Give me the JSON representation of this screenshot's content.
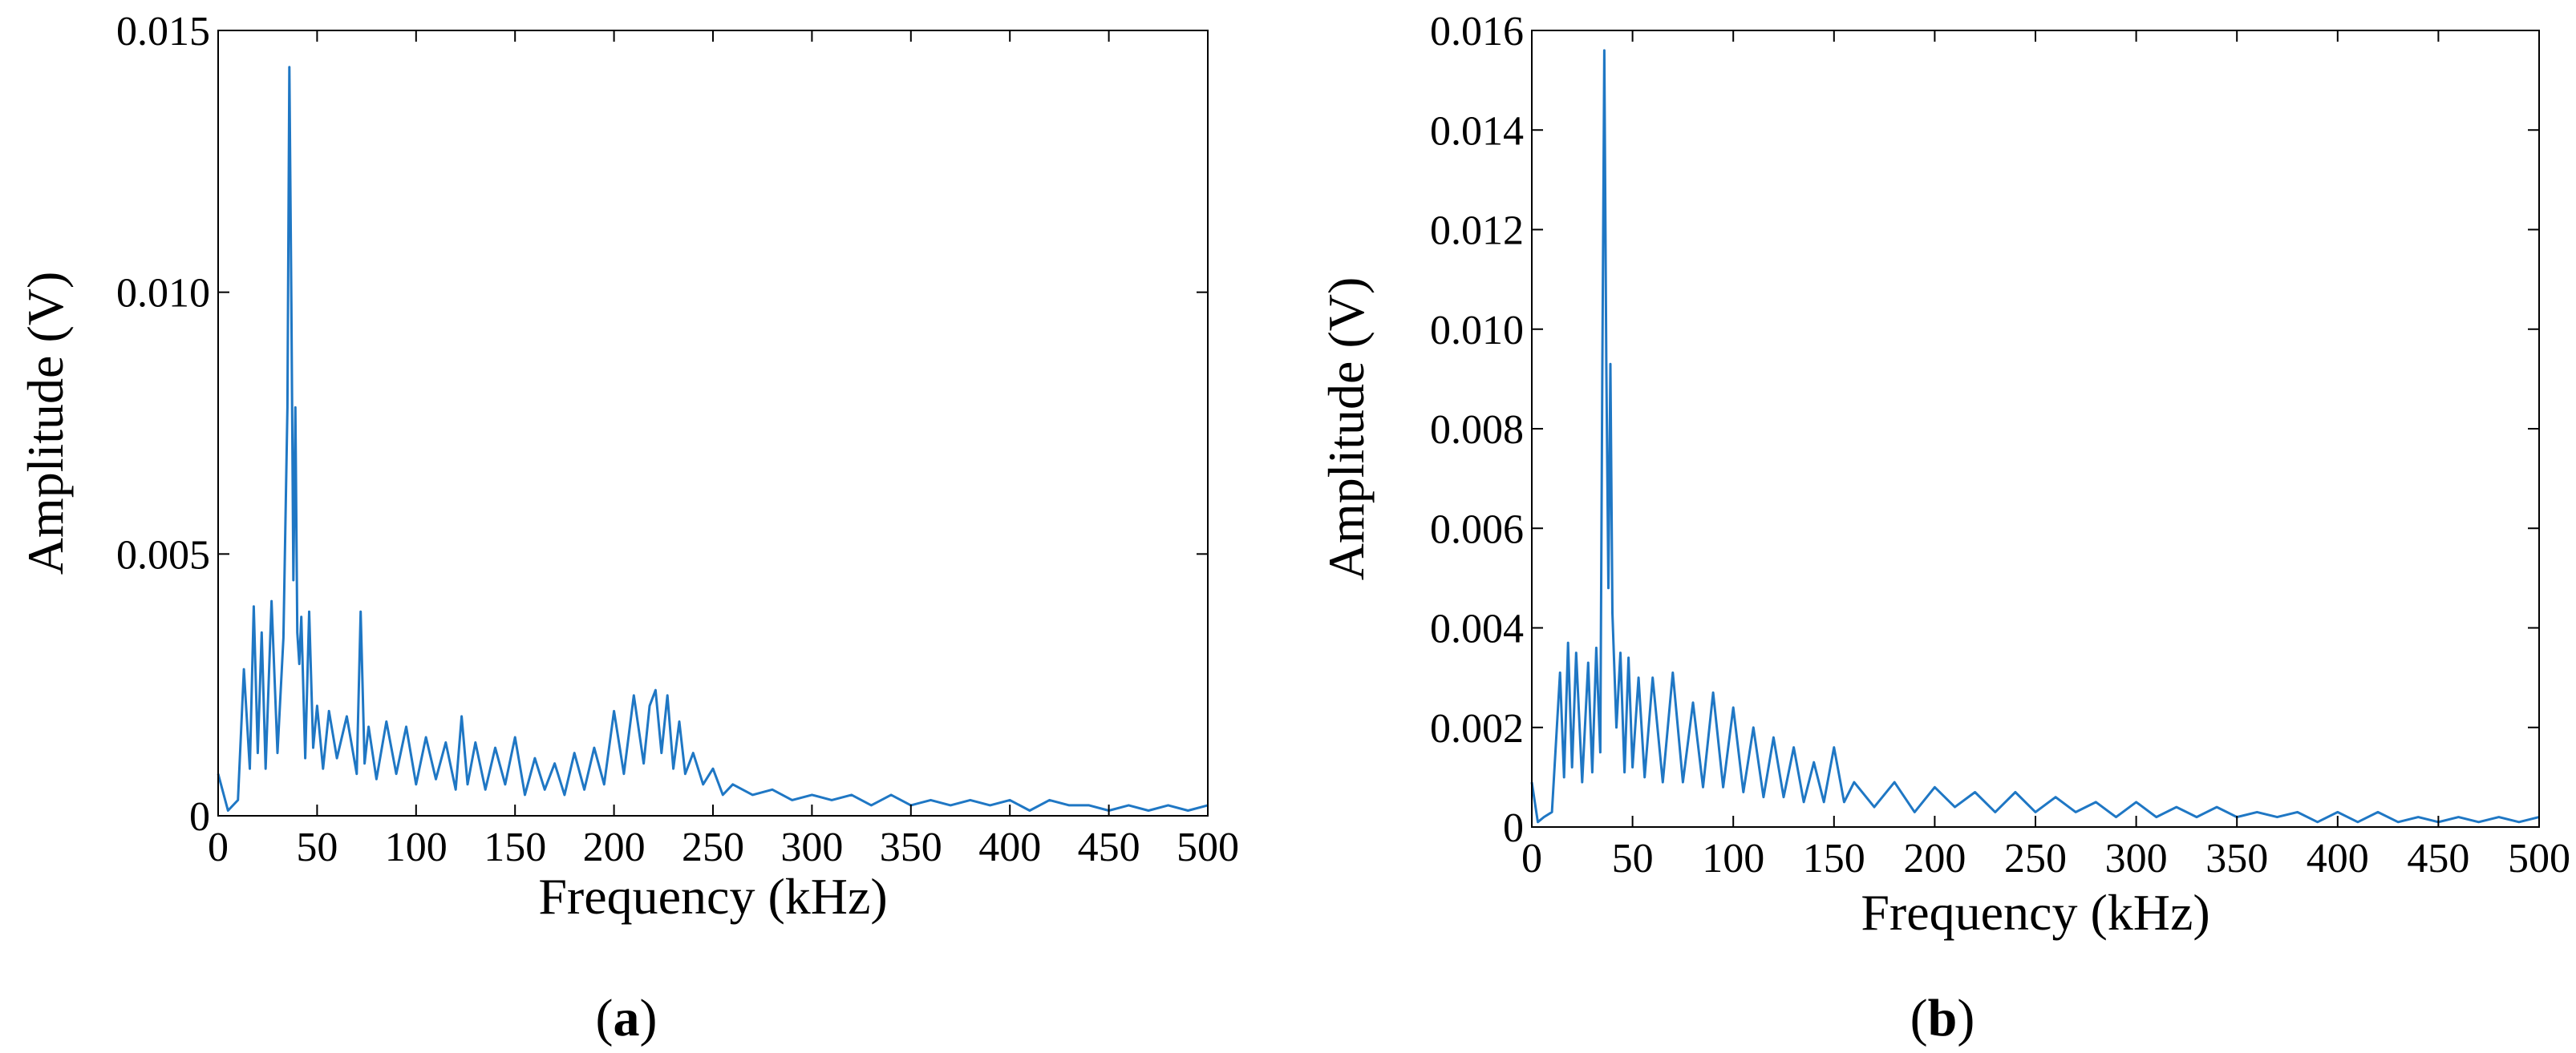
{
  "colors": {
    "series": "#1f77c4",
    "axes": "#000000",
    "background": "#ffffff"
  },
  "chart_data": [
    {
      "type": "line",
      "panel_label": "a",
      "xlabel": "Frequency (kHz)",
      "ylabel": "Amplitude (V)",
      "xlim": [
        0,
        500
      ],
      "ylim": [
        0,
        0.015
      ],
      "x_ticks": [
        0,
        50,
        100,
        150,
        200,
        250,
        300,
        350,
        400,
        450,
        500
      ],
      "x_tick_labels": [
        "0",
        "50",
        "100",
        "150",
        "200",
        "250",
        "300",
        "350",
        "400",
        "450",
        "500"
      ],
      "y_ticks": [
        0,
        0.005,
        0.01,
        0.015
      ],
      "y_tick_labels": [
        "0",
        "0.005",
        "0.010",
        "0.015"
      ],
      "grid": false,
      "series": [
        {
          "x": [
            0,
            5,
            10,
            13,
            16,
            18,
            20,
            22,
            24,
            27,
            30,
            33,
            35,
            36,
            37,
            38,
            39,
            40,
            41,
            42,
            44,
            46,
            48,
            50,
            53,
            56,
            60,
            65,
            70,
            72,
            74,
            76,
            80,
            85,
            90,
            95,
            100,
            105,
            110,
            115,
            120,
            123,
            126,
            130,
            135,
            140,
            145,
            150,
            155,
            160,
            165,
            170,
            175,
            180,
            185,
            190,
            195,
            200,
            205,
            210,
            215,
            218,
            221,
            224,
            227,
            230,
            233,
            236,
            240,
            245,
            250,
            255,
            260,
            270,
            280,
            290,
            300,
            310,
            320,
            330,
            340,
            350,
            360,
            370,
            380,
            390,
            400,
            410,
            420,
            430,
            440,
            450,
            460,
            470,
            480,
            490,
            500
          ],
          "y": [
            0.0008,
            0.0001,
            0.0003,
            0.0028,
            0.0009,
            0.004,
            0.0012,
            0.0035,
            0.0009,
            0.0041,
            0.0012,
            0.0034,
            0.0078,
            0.0143,
            0.0098,
            0.0045,
            0.0078,
            0.0035,
            0.0029,
            0.0038,
            0.0011,
            0.0039,
            0.0013,
            0.0021,
            0.0009,
            0.002,
            0.0011,
            0.0019,
            0.0008,
            0.0039,
            0.001,
            0.0017,
            0.0007,
            0.0018,
            0.0008,
            0.0017,
            0.0006,
            0.0015,
            0.0007,
            0.0014,
            0.0005,
            0.0019,
            0.0006,
            0.0014,
            0.0005,
            0.0013,
            0.0006,
            0.0015,
            0.0004,
            0.0011,
            0.0005,
            0.001,
            0.0004,
            0.0012,
            0.0005,
            0.0013,
            0.0006,
            0.002,
            0.0008,
            0.0023,
            0.001,
            0.0021,
            0.0024,
            0.0012,
            0.0023,
            0.0009,
            0.0018,
            0.0008,
            0.0012,
            0.0006,
            0.0009,
            0.0004,
            0.0006,
            0.0004,
            0.0005,
            0.0003,
            0.0004,
            0.0003,
            0.0004,
            0.0002,
            0.0004,
            0.0002,
            0.0003,
            0.0002,
            0.0003,
            0.0002,
            0.0003,
            0.0001,
            0.0003,
            0.0002,
            0.0002,
            0.0001,
            0.0002,
            0.0001,
            0.0002,
            0.0001,
            0.0002
          ]
        }
      ]
    },
    {
      "type": "line",
      "panel_label": "b",
      "xlabel": "Frequency (kHz)",
      "ylabel": "Amplitude (V)",
      "xlim": [
        0,
        500
      ],
      "ylim": [
        0,
        0.016
      ],
      "x_ticks": [
        0,
        50,
        100,
        150,
        200,
        250,
        300,
        350,
        400,
        450,
        500
      ],
      "x_tick_labels": [
        "0",
        "50",
        "100",
        "150",
        "200",
        "250",
        "300",
        "350",
        "400",
        "450",
        "500"
      ],
      "y_ticks": [
        0,
        0.002,
        0.004,
        0.006,
        0.008,
        0.01,
        0.012,
        0.014,
        0.016
      ],
      "y_tick_labels": [
        "0",
        "0.002",
        "0.004",
        "0.006",
        "0.008",
        "0.010",
        "0.012",
        "0.014",
        "0.016"
      ],
      "grid": false,
      "series": [
        {
          "x": [
            0,
            3,
            6,
            10,
            14,
            16,
            18,
            20,
            22,
            25,
            28,
            30,
            32,
            34,
            35,
            36,
            37,
            38,
            39,
            40,
            42,
            44,
            46,
            48,
            50,
            53,
            56,
            60,
            65,
            70,
            75,
            80,
            85,
            90,
            95,
            100,
            105,
            110,
            115,
            120,
            125,
            130,
            135,
            140,
            145,
            150,
            155,
            160,
            170,
            180,
            190,
            200,
            210,
            220,
            230,
            240,
            250,
            260,
            270,
            280,
            290,
            300,
            310,
            320,
            330,
            340,
            350,
            360,
            370,
            380,
            390,
            400,
            410,
            420,
            430,
            440,
            450,
            460,
            470,
            480,
            490,
            500
          ],
          "y": [
            0.0009,
            0.0001,
            0.0002,
            0.0003,
            0.0031,
            0.001,
            0.0037,
            0.0012,
            0.0035,
            0.0009,
            0.0033,
            0.0011,
            0.0036,
            0.0015,
            0.0091,
            0.0156,
            0.0093,
            0.0048,
            0.0093,
            0.0043,
            0.002,
            0.0035,
            0.0011,
            0.0034,
            0.0012,
            0.003,
            0.001,
            0.003,
            0.0009,
            0.0031,
            0.0009,
            0.0025,
            0.0008,
            0.0027,
            0.0008,
            0.0024,
            0.0007,
            0.002,
            0.0006,
            0.0018,
            0.0006,
            0.0016,
            0.0005,
            0.0013,
            0.0005,
            0.0016,
            0.0005,
            0.0009,
            0.0004,
            0.0009,
            0.0003,
            0.0008,
            0.0004,
            0.0007,
            0.0003,
            0.0007,
            0.0003,
            0.0006,
            0.0003,
            0.0005,
            0.0002,
            0.0005,
            0.0002,
            0.0004,
            0.0002,
            0.0004,
            0.0002,
            0.0003,
            0.0002,
            0.0003,
            0.0001,
            0.0003,
            0.0001,
            0.0003,
            0.0001,
            0.0002,
            0.0001,
            0.0002,
            0.0001,
            0.0002,
            0.0001,
            0.0002
          ]
        }
      ]
    }
  ]
}
